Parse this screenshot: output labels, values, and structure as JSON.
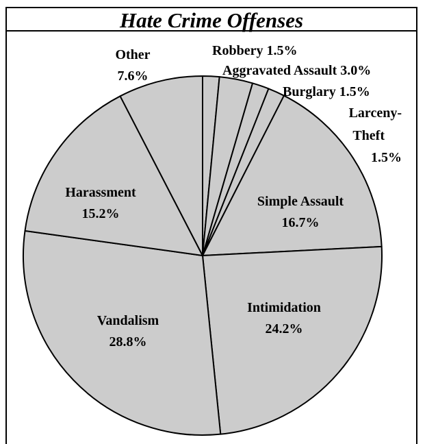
{
  "chart_data": {
    "type": "pie",
    "title": "Hate Crime Offenses",
    "slice_color": "#cccccc",
    "edge_color": "#000000",
    "slices": [
      {
        "category": "Robbery",
        "value": 1.5,
        "label_text": "Robbery 1.5%"
      },
      {
        "category": "Aggravated Assault",
        "value": 3.0,
        "label_text": "Aggravated Assault 3.0%"
      },
      {
        "category": "Burglary",
        "value": 1.5,
        "label_text": "Burglary 1.5%"
      },
      {
        "category": "Larceny-Theft",
        "value": 1.5,
        "label_lines": [
          "Larceny-",
          "Theft",
          "1.5%"
        ]
      },
      {
        "category": "Simple Assault",
        "value": 16.7,
        "label_lines": [
          "Simple Assault",
          "16.7%"
        ]
      },
      {
        "category": "Intimidation",
        "value": 24.2,
        "label_lines": [
          "Intimidation",
          "24.2%"
        ]
      },
      {
        "category": "Vandalism",
        "value": 28.8,
        "label_lines": [
          "Vandalism",
          "28.8%"
        ]
      },
      {
        "category": "Harassment",
        "value": 15.2,
        "label_lines": [
          "Harassment",
          "15.2%"
        ]
      },
      {
        "category": "Other",
        "value": 7.6,
        "label_lines": [
          "Other",
          "7.6%"
        ]
      }
    ]
  }
}
